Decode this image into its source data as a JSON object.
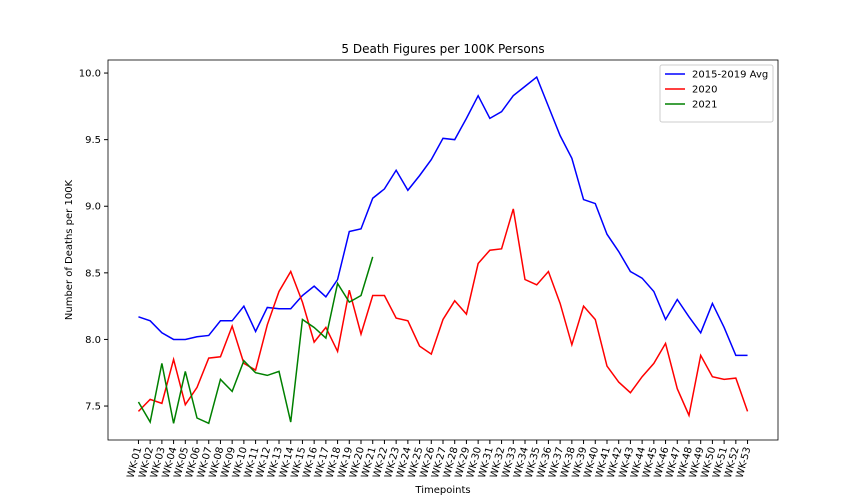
{
  "chart_data": {
    "type": "line",
    "title": "5 Death Figures per 100K Persons",
    "x_label": "Timepoints",
    "y_label": "Number of Deaths per 100K",
    "categories": [
      "WK-01",
      "WK-02",
      "WK-03",
      "WK-04",
      "WK-05",
      "WK-06",
      "WK-07",
      "WK-08",
      "WK-09",
      "WK-10",
      "WK-11",
      "WK-12",
      "WK-13",
      "WK-14",
      "WK-15",
      "WK-16",
      "WK-17",
      "WK-18",
      "WK-19",
      "WK-20",
      "WK-21",
      "WK-22",
      "WK-23",
      "WK-24",
      "WK-25",
      "WK-26",
      "WK-27",
      "WK-28",
      "WK-29",
      "WK-30",
      "WK-31",
      "WK-32",
      "WK-33",
      "WK-34",
      "WK-35",
      "WK-36",
      "WK-37",
      "WK-38",
      "WK-39",
      "WK-40",
      "WK-41",
      "WK-42",
      "WK-43",
      "WK-44",
      "WK-45",
      "WK-46",
      "WK-47",
      "WK-48",
      "WK-49",
      "WK-50",
      "WK-51",
      "WK-52",
      "WK-53"
    ],
    "series": [
      {
        "name": "2015-2019 Avg",
        "color": "#0000ff",
        "values": [
          8.17,
          8.14,
          8.05,
          8.0,
          8.0,
          8.02,
          8.03,
          8.14,
          8.14,
          8.25,
          8.06,
          8.24,
          8.23,
          8.23,
          8.33,
          8.4,
          8.32,
          8.45,
          8.81,
          8.83,
          9.06,
          9.13,
          9.27,
          9.12,
          9.23,
          9.35,
          9.51,
          9.5,
          9.66,
          9.83,
          9.66,
          9.71,
          9.83,
          9.9,
          9.97,
          9.75,
          9.53,
          9.36,
          9.05,
          9.02,
          8.79,
          8.66,
          8.51,
          8.46,
          8.36,
          8.15,
          8.3,
          8.17,
          8.05,
          8.27,
          8.09,
          7.88,
          7.88
        ]
      },
      {
        "name": "2020",
        "color": "#ff0000",
        "values": [
          7.46,
          7.55,
          7.52,
          7.85,
          7.51,
          7.64,
          7.86,
          7.87,
          8.1,
          7.82,
          7.77,
          8.11,
          8.36,
          8.51,
          8.28,
          7.98,
          8.09,
          7.91,
          8.37,
          8.04,
          8.33,
          8.33,
          8.16,
          8.14,
          7.95,
          7.89,
          8.15,
          8.29,
          8.19,
          8.57,
          8.67,
          8.68,
          8.98,
          8.45,
          8.41,
          8.51,
          8.27,
          7.96,
          8.25,
          8.15,
          7.8,
          7.68,
          7.6,
          7.72,
          7.82,
          7.97,
          7.63,
          7.43,
          7.88,
          7.72,
          7.7,
          7.71,
          7.46
        ]
      },
      {
        "name": "2021",
        "color": "#008000",
        "values": [
          7.53,
          7.38,
          7.82,
          7.37,
          7.76,
          7.41,
          7.37,
          7.7,
          7.61,
          7.84,
          7.75,
          7.73,
          7.76,
          7.38,
          8.15,
          8.09,
          8.01,
          8.42,
          8.28,
          8.33,
          8.62,
          null,
          null,
          null,
          null,
          null,
          null,
          null,
          null,
          null,
          null,
          null,
          null,
          null,
          null,
          null,
          null,
          null,
          null,
          null,
          null,
          null,
          null,
          null,
          null,
          null,
          null,
          null,
          null,
          null,
          null,
          null,
          null
        ]
      }
    ],
    "ylim": [
      7.245,
      10.098
    ],
    "yticks": [
      7.5,
      {
        "value": 8,
        "label": "8.0"
      },
      8.5,
      {
        "value": 9,
        "label": "9.0"
      },
      9.5,
      {
        "value": 10,
        "label": "10.0"
      }
    ],
    "grid": false,
    "legend": "upper right"
  }
}
